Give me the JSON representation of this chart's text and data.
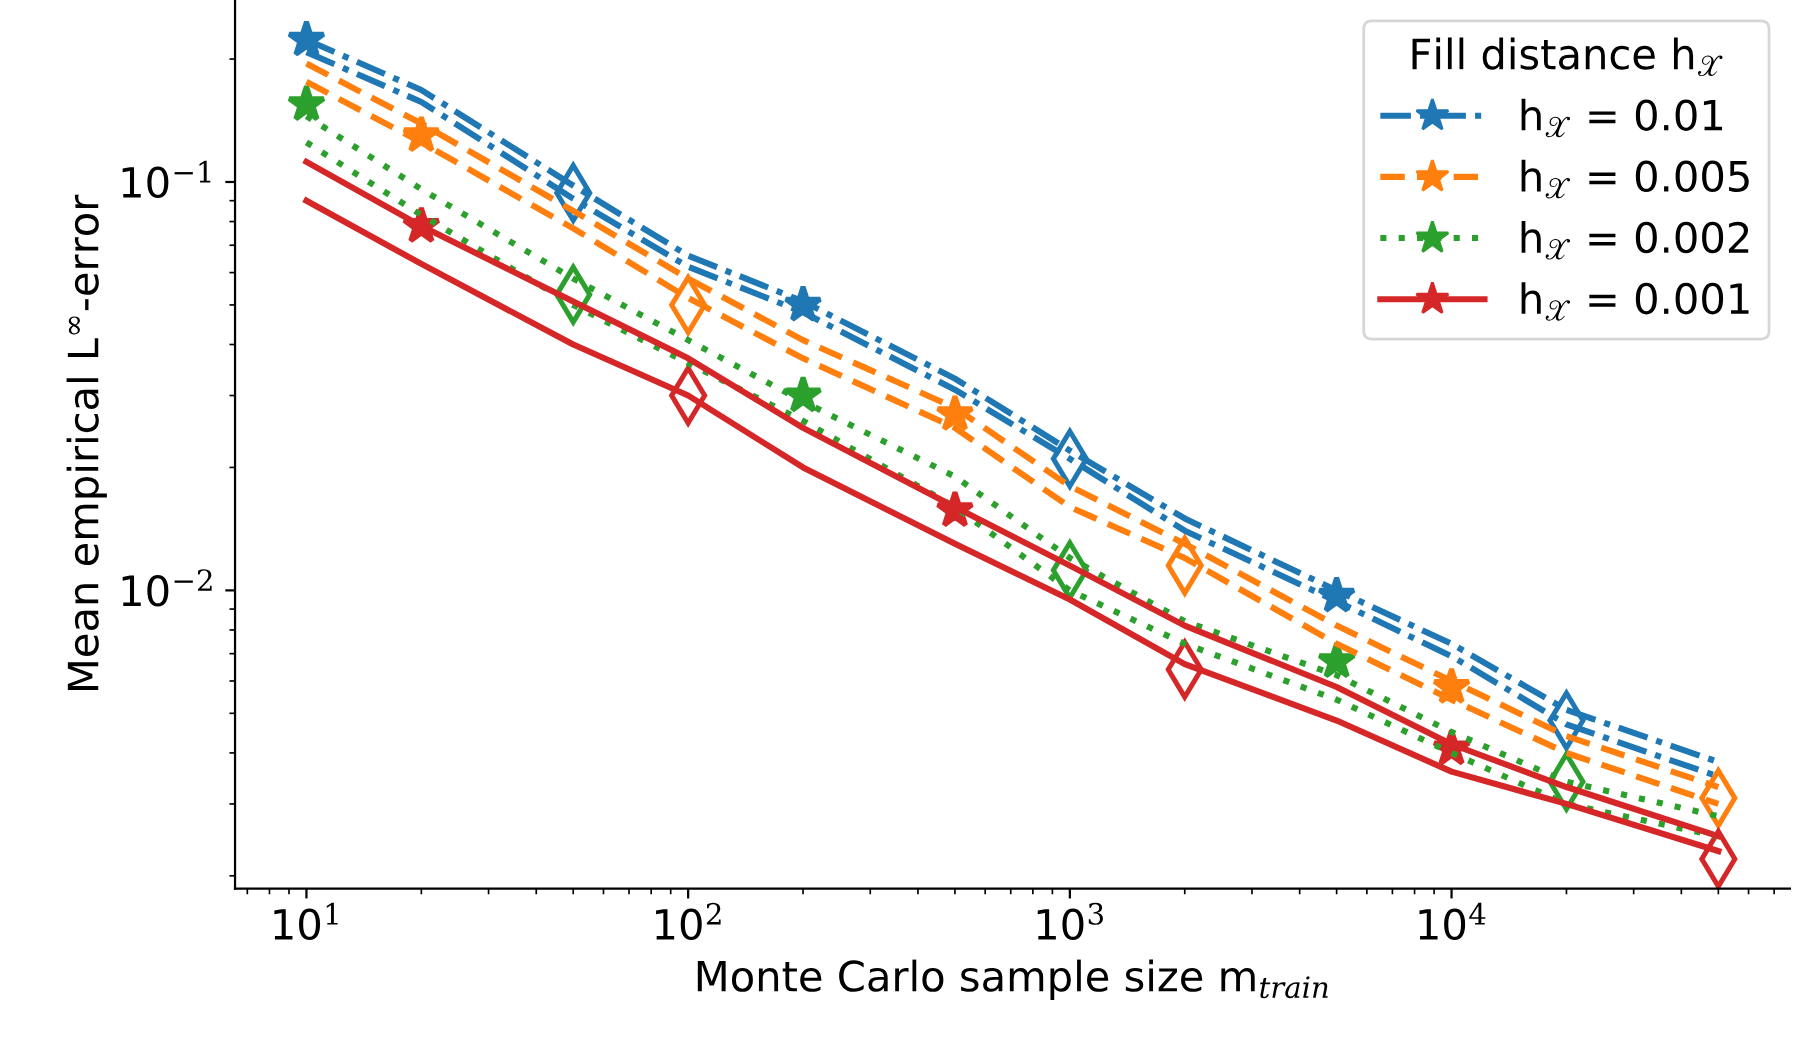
{
  "chart_data": {
    "type": "line",
    "xlabel": "Monte Carlo sample size m$_{train}$",
    "ylabel": "Mean empirical L$^{∞}$-error",
    "legend_title": "Fill distance h$_{𝒳}$",
    "legend": "top right",
    "log": "xy",
    "grid": false,
    "x": [
      10,
      20,
      50,
      100,
      200,
      500,
      1000,
      2000,
      5000,
      10000,
      20000,
      50000
    ],
    "xlim": [
      6.5,
      77000
    ],
    "ylim": [
      0.00186,
      0.279
    ],
    "xticks": [
      {
        "value": 10,
        "label": "10$^{1}$"
      },
      {
        "value": 100,
        "label": "10$^{2}$"
      },
      {
        "value": 1000,
        "label": "10$^{3}$"
      },
      {
        "value": 10000,
        "label": "10$^{4}$"
      }
    ],
    "yticks": [
      {
        "value": 0.01,
        "label": "10$^{−2}$"
      },
      {
        "value": 0.1,
        "label": "10$^{−1}$"
      }
    ],
    "series": [
      {
        "name": "h$_{𝒳}$ = 0.01",
        "color": "#1f77b4",
        "line_style": "dashdot",
        "marker": "none",
        "values": [
          0.223,
          0.168,
          0.098,
          0.066,
          0.051,
          0.033,
          0.022,
          0.015,
          0.01,
          0.0074,
          0.0051,
          0.0038
        ]
      },
      {
        "color": "#1f77b4",
        "line_style": "dashdot",
        "marker": "none",
        "values": [
          0.208,
          0.157,
          0.091,
          0.062,
          0.048,
          0.031,
          0.021,
          0.014,
          0.0094,
          0.0069,
          0.0047,
          0.0035
        ]
      },
      {
        "type": "scatter",
        "color": "#1f77b4",
        "marker": "star",
        "x": [
          10,
          200,
          5000
        ],
        "values": [
          0.223,
          0.05,
          0.0097
        ]
      },
      {
        "type": "scatter",
        "color": "#1f77b4",
        "marker": "diamond",
        "x": [
          50,
          1000,
          20000
        ],
        "values": [
          0.094,
          0.021,
          0.0048
        ]
      },
      {
        "name": "h$_{𝒳}$ = 0.005",
        "color": "#ff7f0e",
        "line_style": "dashed",
        "marker": "none",
        "values": [
          0.195,
          0.139,
          0.085,
          0.058,
          0.041,
          0.028,
          0.018,
          0.013,
          0.0082,
          0.006,
          0.0044,
          0.0033
        ]
      },
      {
        "color": "#ff7f0e",
        "line_style": "dashed",
        "marker": "none",
        "values": [
          0.176,
          0.125,
          0.077,
          0.052,
          0.037,
          0.025,
          0.016,
          0.012,
          0.0074,
          0.0054,
          0.004,
          0.003
        ]
      },
      {
        "type": "scatter",
        "color": "#ff7f0e",
        "marker": "star",
        "x": [
          20,
          500,
          10000
        ],
        "values": [
          0.13,
          0.027,
          0.0058
        ]
      },
      {
        "type": "scatter",
        "color": "#ff7f0e",
        "marker": "diamond",
        "x": [
          100,
          2000,
          50000
        ],
        "values": [
          0.05,
          0.0115,
          0.0031
        ]
      },
      {
        "name": "h$_{𝒳}$ = 0.002",
        "color": "#2ca02c",
        "line_style": "dotted",
        "marker": "none",
        "values": [
          0.145,
          0.096,
          0.058,
          0.041,
          0.029,
          0.019,
          0.012,
          0.0084,
          0.0062,
          0.0045,
          0.0034,
          0.0028
        ]
      },
      {
        "color": "#2ca02c",
        "line_style": "dotted",
        "marker": "none",
        "values": [
          0.125,
          0.083,
          0.05,
          0.036,
          0.026,
          0.016,
          0.01,
          0.0074,
          0.0054,
          0.004,
          0.003,
          0.0025
        ]
      },
      {
        "type": "scatter",
        "color": "#2ca02c",
        "marker": "star",
        "x": [
          10,
          200,
          5000
        ],
        "values": [
          0.155,
          0.03,
          0.0067
        ]
      },
      {
        "type": "scatter",
        "color": "#2ca02c",
        "marker": "diamond",
        "x": [
          50,
          1000,
          20000
        ],
        "values": [
          0.053,
          0.0112,
          0.0034
        ]
      },
      {
        "name": "h$_{𝒳}$ = 0.001",
        "color": "#d62728",
        "line_style": "solid",
        "marker": "none",
        "values": [
          0.112,
          0.078,
          0.051,
          0.037,
          0.025,
          0.016,
          0.0115,
          0.0082,
          0.0058,
          0.0042,
          0.0033,
          0.0025
        ]
      },
      {
        "color": "#d62728",
        "line_style": "solid",
        "marker": "none",
        "values": [
          0.09,
          0.063,
          0.04,
          0.03,
          0.02,
          0.013,
          0.0095,
          0.0066,
          0.0048,
          0.0036,
          0.003,
          0.0023
        ]
      },
      {
        "type": "scatter",
        "color": "#d62728",
        "marker": "star",
        "x": [
          20,
          500,
          10000
        ],
        "values": [
          0.078,
          0.0157,
          0.0041
        ]
      },
      {
        "type": "scatter",
        "color": "#d62728",
        "marker": "diamond",
        "x": [
          100,
          2000,
          50000
        ],
        "values": [
          0.03,
          0.0064,
          0.0022
        ]
      }
    ]
  }
}
